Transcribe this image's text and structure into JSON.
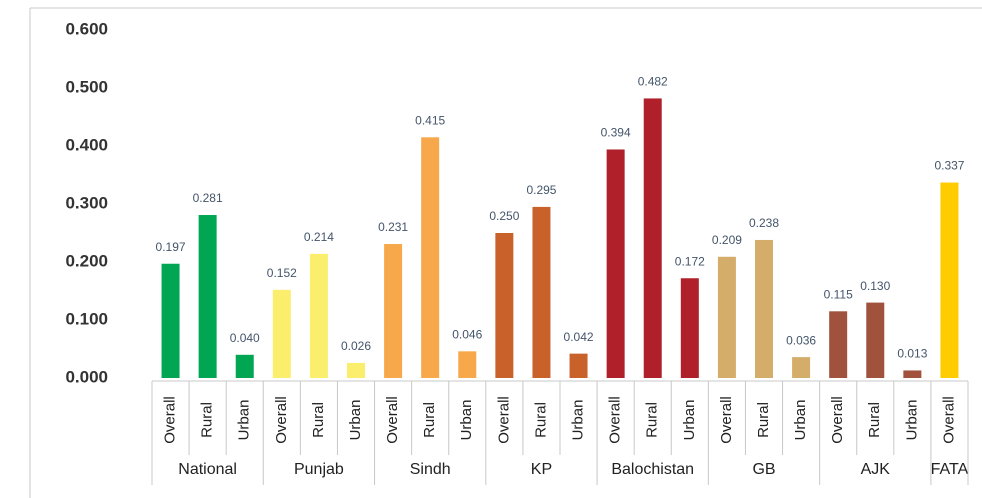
{
  "chart_data": {
    "type": "bar",
    "ylim": [
      0,
      0.6
    ],
    "yticks": [
      {
        "value": 0,
        "label": "0.000"
      },
      {
        "value": 0.1,
        "label": "0.100"
      },
      {
        "value": 0.2,
        "label": "0.200"
      },
      {
        "value": 0.3,
        "label": "0.300"
      },
      {
        "value": 0.4,
        "label": "0.400"
      },
      {
        "value": 0.5,
        "label": "0.500"
      },
      {
        "value": 0.6,
        "label": "0.600"
      }
    ],
    "groups": [
      {
        "name": "National",
        "color": "#00a651",
        "categories": [
          "Overall",
          "Rural",
          "Urban"
        ],
        "values": [
          0.197,
          0.281,
          0.04
        ],
        "value_labels": [
          "0.197",
          "0.281",
          "0.040"
        ]
      },
      {
        "name": "Punjab",
        "color": "#fbee6c",
        "categories": [
          "Overall",
          "Rural",
          "Urban"
        ],
        "values": [
          0.152,
          0.214,
          0.026
        ],
        "value_labels": [
          "0.152",
          "0.214",
          "0.026"
        ]
      },
      {
        "name": "Sindh",
        "color": "#f7a84a",
        "categories": [
          "Overall",
          "Rural",
          "Urban"
        ],
        "values": [
          0.231,
          0.415,
          0.046
        ],
        "value_labels": [
          "0.231",
          "0.415",
          "0.046"
        ]
      },
      {
        "name": "KP",
        "color": "#c8622a",
        "categories": [
          "Overall",
          "Rural",
          "Urban"
        ],
        "values": [
          0.25,
          0.295,
          0.042
        ],
        "value_labels": [
          "0.250",
          "0.295",
          "0.042"
        ]
      },
      {
        "name": "Balochistan",
        "color": "#b0202a",
        "categories": [
          "Overall",
          "Rural",
          "Urban"
        ],
        "values": [
          0.394,
          0.482,
          0.172
        ],
        "value_labels": [
          "0.394",
          "0.482",
          "0.172"
        ]
      },
      {
        "name": "GB",
        "color": "#d4ad6a",
        "categories": [
          "Overall",
          "Rural",
          "Urban"
        ],
        "values": [
          0.209,
          0.238,
          0.036
        ],
        "value_labels": [
          "0.209",
          "0.238",
          "0.036"
        ]
      },
      {
        "name": "AJK",
        "color": "#a0523d",
        "categories": [
          "Overall",
          "Rural",
          "Urban"
        ],
        "values": [
          0.115,
          0.13,
          0.013
        ],
        "value_labels": [
          "0.115",
          "0.130",
          "0.013"
        ]
      },
      {
        "name": "FATA",
        "color": "#ffcc00",
        "categories": [
          "Overall"
        ],
        "values": [
          0.337
        ],
        "value_labels": [
          "0.337"
        ]
      }
    ]
  }
}
